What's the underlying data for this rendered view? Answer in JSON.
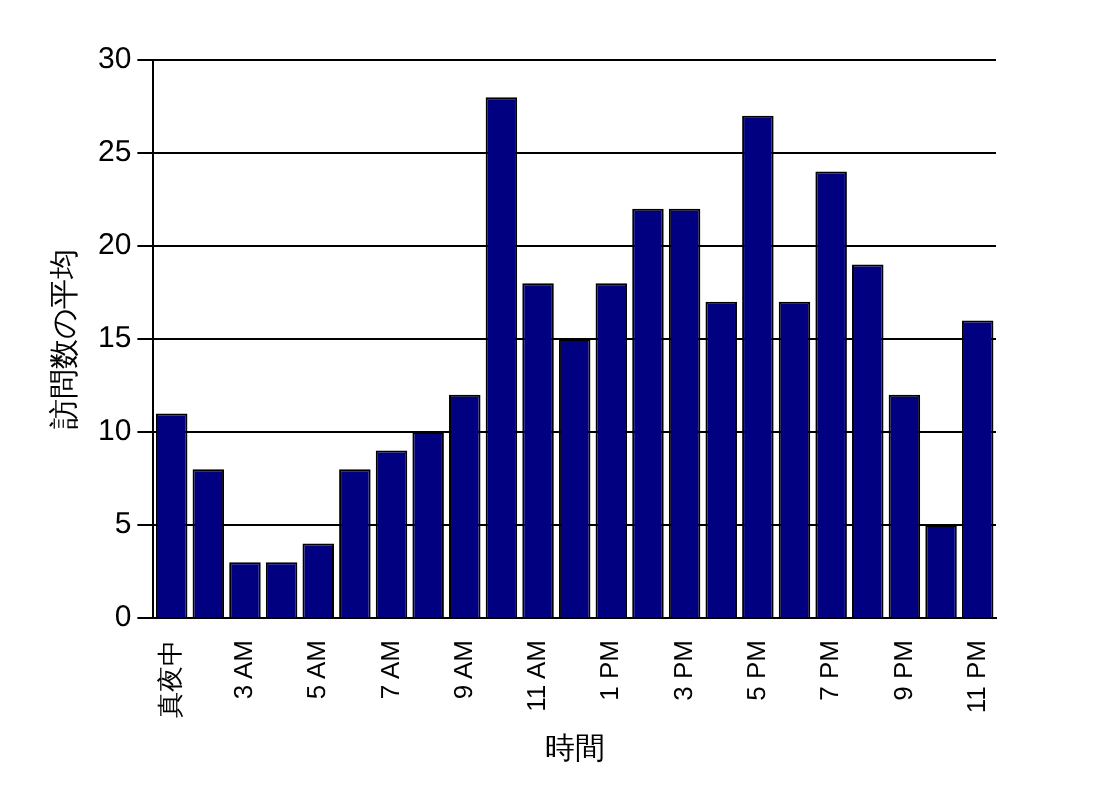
{
  "chart_data": {
    "type": "bar",
    "xlabel": "時間",
    "ylabel": "訪問数の平均",
    "categories": [
      "真夜中",
      null,
      "3 AM",
      null,
      "5 AM",
      null,
      "7 AM",
      null,
      "9 AM",
      null,
      "11 AM",
      null,
      "1 PM",
      null,
      "3 PM",
      null,
      "5 PM",
      null,
      "7 PM",
      null,
      "9 PM",
      null,
      "11 PM"
    ],
    "values": [
      11,
      8,
      3,
      3,
      4,
      8,
      9,
      10,
      12,
      28,
      18,
      15,
      18,
      22,
      22,
      17,
      27,
      17,
      24,
      19,
      12,
      5,
      16
    ],
    "color": "#000080",
    "ylim": [
      0,
      30
    ],
    "yticks": [
      0,
      5,
      10,
      15,
      20,
      25,
      30
    ],
    "grid": "y",
    "legend": false
  }
}
